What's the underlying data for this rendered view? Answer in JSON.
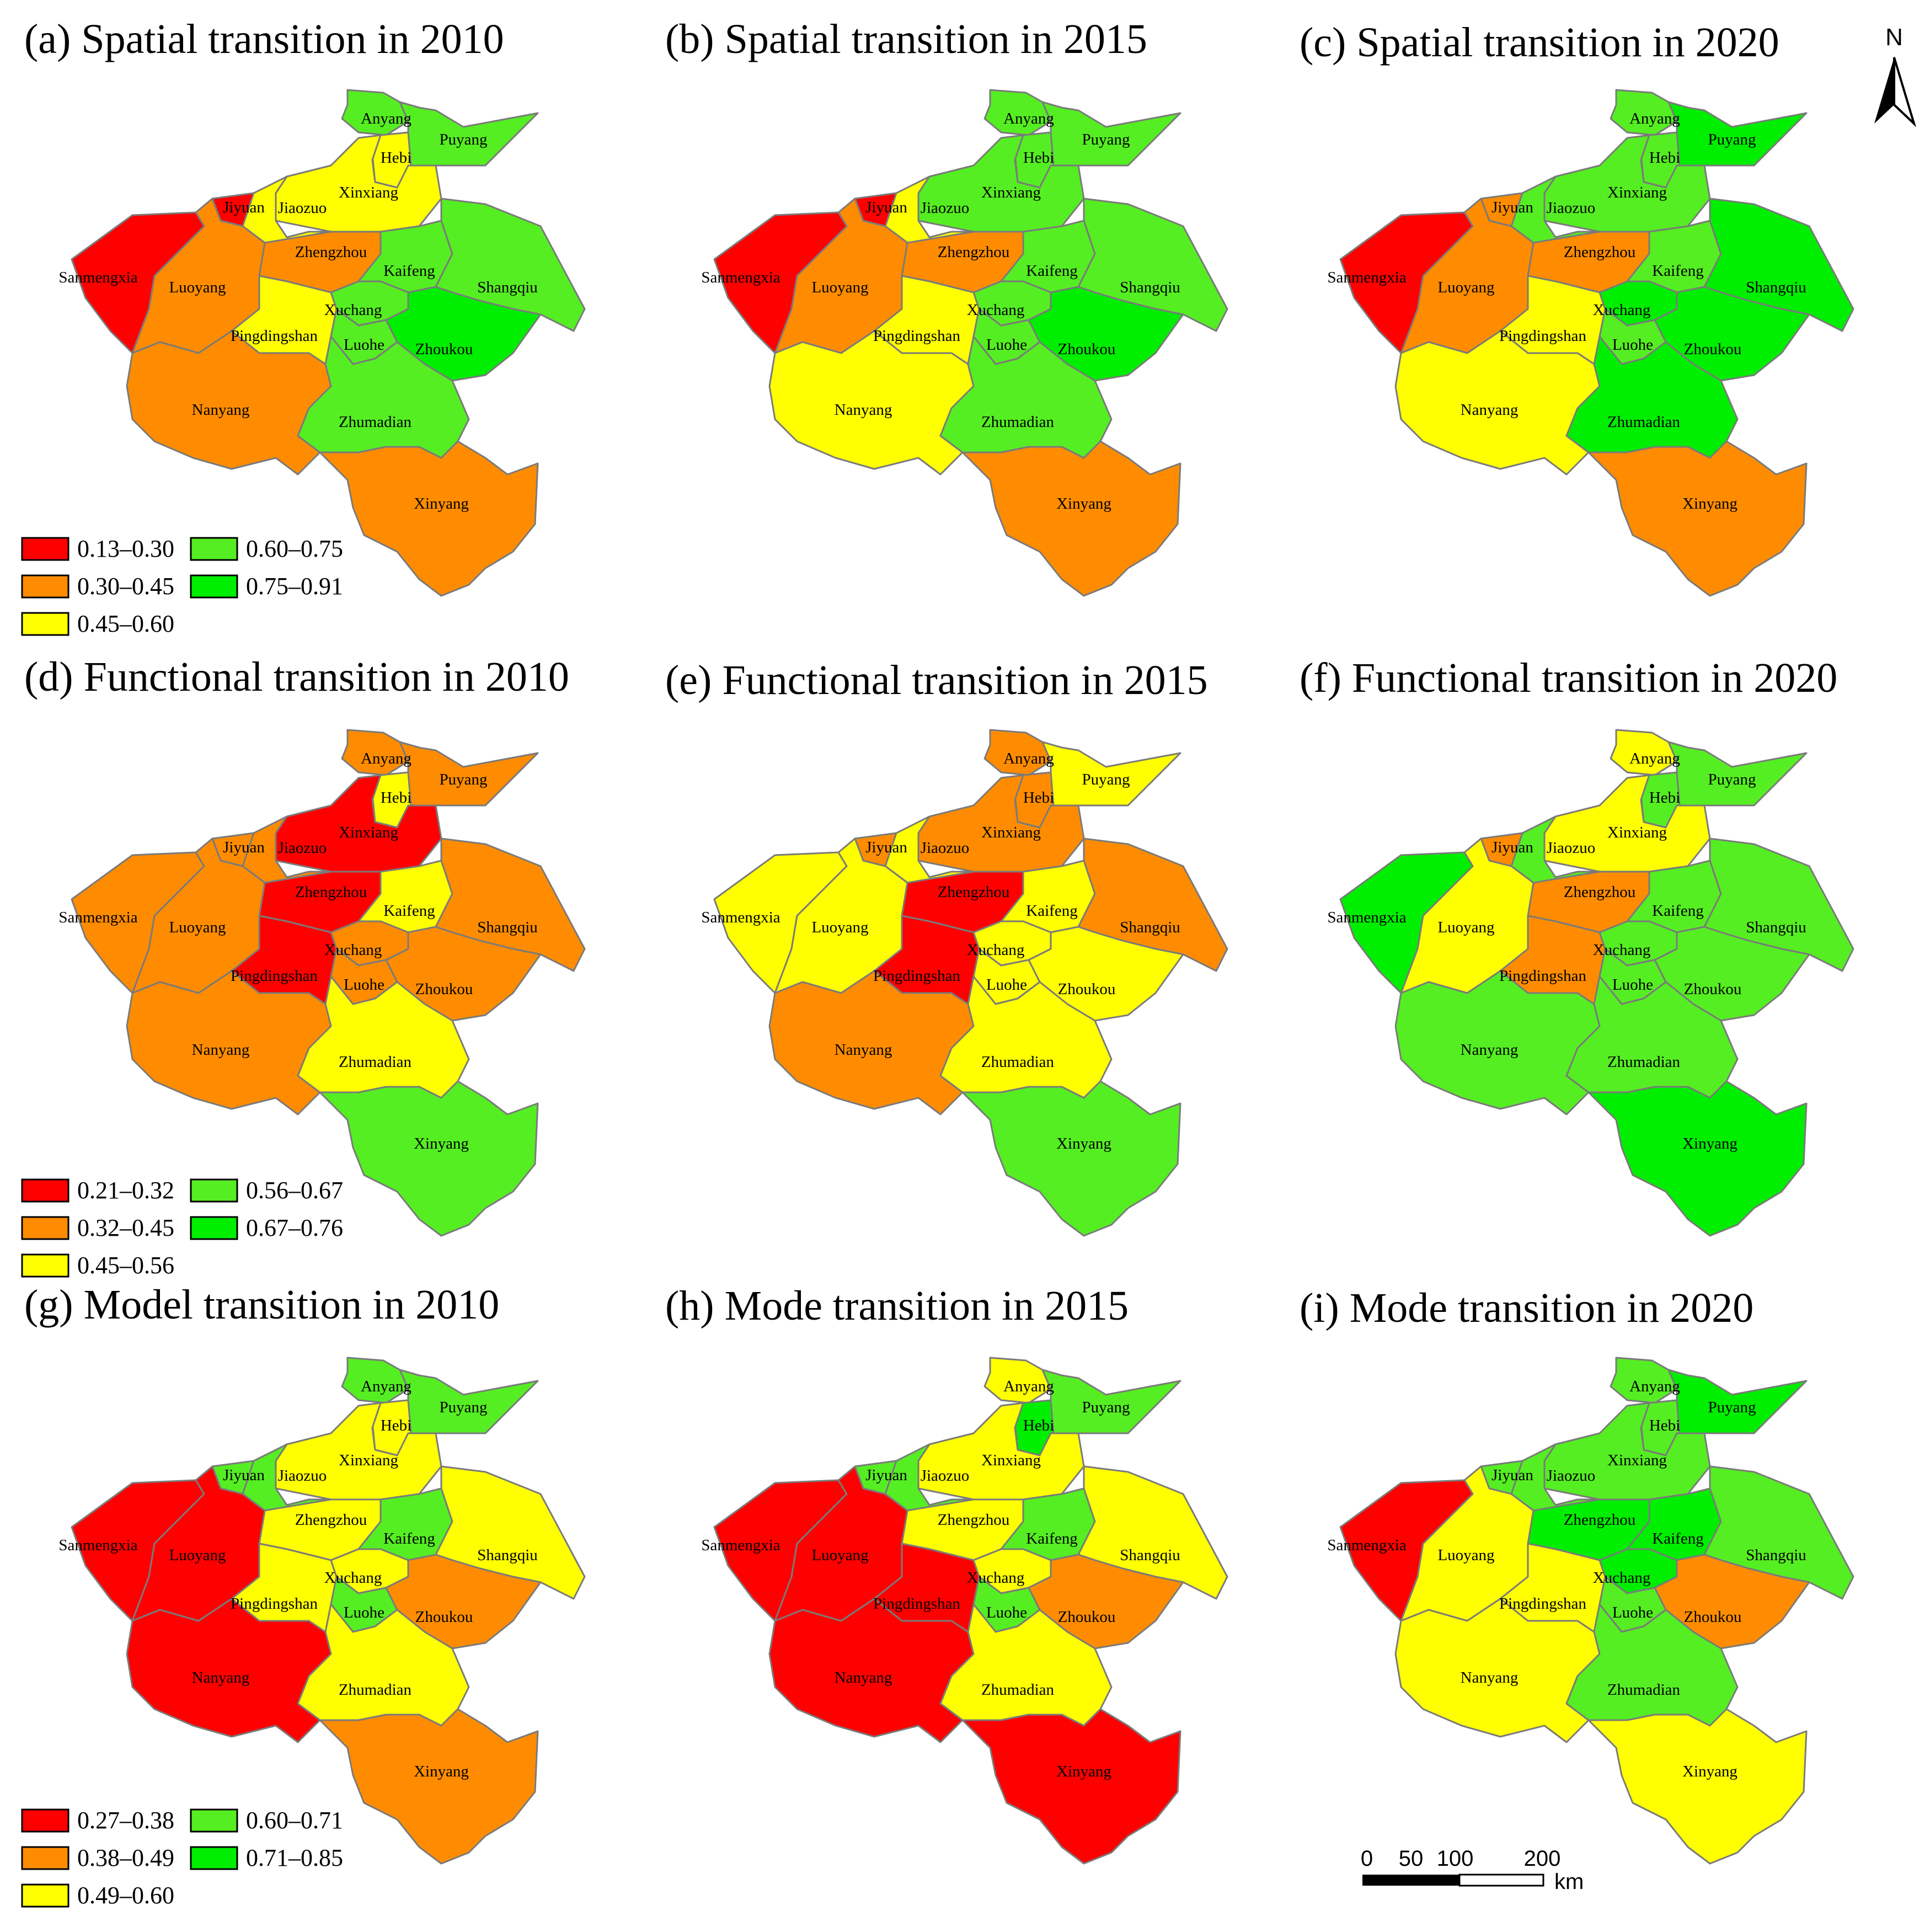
{
  "colors": {
    "c1": "#ff0000",
    "c2": "#ff8c00",
    "c3": "#ffff00",
    "c4": "#55ee22",
    "c5": "#00ee00",
    "border": "#7a7a7a"
  },
  "legends": [
    {
      "ranges": [
        "0.13–0.30",
        "0.30–0.45",
        "0.45–0.60",
        "0.60–0.75",
        "0.75–0.91"
      ]
    },
    {
      "ranges": [
        "0.21–0.32",
        "0.32–0.45",
        "0.45–0.56",
        "0.56–0.67",
        "0.67–0.76"
      ]
    },
    {
      "ranges": [
        "0.27–0.38",
        "0.38–0.49",
        "0.49–0.60",
        "0.60–0.71",
        "0.71–0.85"
      ]
    }
  ],
  "cities": [
    "Anyang",
    "Puyang",
    "Hebi",
    "Xinxiang",
    "Jiyuan",
    "Jiaozuo",
    "Zhengzhou",
    "Kaifeng",
    "Shangqiu",
    "Sanmengxia",
    "Luoyang",
    "Pingdingshan",
    "Xuchang",
    "Luohe",
    "Zhoukou",
    "Nanyang",
    "Zhumadian",
    "Xinyang"
  ],
  "panels": [
    {
      "title": "(a) Spatial transition in 2010",
      "classes": {
        "Anyang": 4,
        "Puyang": 4,
        "Hebi": 3,
        "Xinxiang": 3,
        "Jiyuan": 1,
        "Jiaozuo": 3,
        "Zhengzhou": 2,
        "Kaifeng": 4,
        "Shangqiu": 4,
        "Sanmengxia": 1,
        "Luoyang": 2,
        "Pingdingshan": 3,
        "Xuchang": 4,
        "Luohe": 4,
        "Zhoukou": 5,
        "Nanyang": 2,
        "Zhumadian": 4,
        "Xinyang": 2
      }
    },
    {
      "title": "(b) Spatial transition in 2015",
      "classes": {
        "Anyang": 4,
        "Puyang": 4,
        "Hebi": 4,
        "Xinxiang": 4,
        "Jiyuan": 1,
        "Jiaozuo": 3,
        "Zhengzhou": 2,
        "Kaifeng": 4,
        "Shangqiu": 4,
        "Sanmengxia": 1,
        "Luoyang": 2,
        "Pingdingshan": 3,
        "Xuchang": 4,
        "Luohe": 4,
        "Zhoukou": 5,
        "Nanyang": 3,
        "Zhumadian": 4,
        "Xinyang": 2
      }
    },
    {
      "title": "(c) Spatial transition in 2020",
      "classes": {
        "Anyang": 4,
        "Puyang": 5,
        "Hebi": 4,
        "Xinxiang": 4,
        "Jiyuan": 2,
        "Jiaozuo": 4,
        "Zhengzhou": 2,
        "Kaifeng": 4,
        "Shangqiu": 5,
        "Sanmengxia": 1,
        "Luoyang": 2,
        "Pingdingshan": 3,
        "Xuchang": 5,
        "Luohe": 4,
        "Zhoukou": 5,
        "Nanyang": 3,
        "Zhumadian": 5,
        "Xinyang": 2
      }
    },
    {
      "title": "(d) Functional transition in 2010",
      "classes": {
        "Anyang": 2,
        "Puyang": 2,
        "Hebi": 3,
        "Xinxiang": 1,
        "Jiyuan": 2,
        "Jiaozuo": 2,
        "Zhengzhou": 1,
        "Kaifeng": 3,
        "Shangqiu": 2,
        "Sanmengxia": 2,
        "Luoyang": 2,
        "Pingdingshan": 1,
        "Xuchang": 2,
        "Luohe": 2,
        "Zhoukou": 2,
        "Nanyang": 2,
        "Zhumadian": 3,
        "Xinyang": 4
      }
    },
    {
      "title": "(e) Functional transition in 2015",
      "classes": {
        "Anyang": 2,
        "Puyang": 3,
        "Hebi": 2,
        "Xinxiang": 2,
        "Jiyuan": 2,
        "Jiaozuo": 3,
        "Zhengzhou": 1,
        "Kaifeng": 3,
        "Shangqiu": 2,
        "Sanmengxia": 3,
        "Luoyang": 3,
        "Pingdingshan": 1,
        "Xuchang": 3,
        "Luohe": 3,
        "Zhoukou": 3,
        "Nanyang": 2,
        "Zhumadian": 3,
        "Xinyang": 4
      }
    },
    {
      "title": "(f) Functional transition in 2020",
      "classes": {
        "Anyang": 3,
        "Puyang": 4,
        "Hebi": 4,
        "Xinxiang": 3,
        "Jiyuan": 2,
        "Jiaozuo": 4,
        "Zhengzhou": 2,
        "Kaifeng": 4,
        "Shangqiu": 4,
        "Sanmengxia": 5,
        "Luoyang": 3,
        "Pingdingshan": 2,
        "Xuchang": 4,
        "Luohe": 4,
        "Zhoukou": 4,
        "Nanyang": 4,
        "Zhumadian": 4,
        "Xinyang": 5
      }
    },
    {
      "title": "(g) Model transition in 2010",
      "classes": {
        "Anyang": 4,
        "Puyang": 4,
        "Hebi": 3,
        "Xinxiang": 3,
        "Jiyuan": 4,
        "Jiaozuo": 4,
        "Zhengzhou": 3,
        "Kaifeng": 4,
        "Shangqiu": 3,
        "Sanmengxia": 1,
        "Luoyang": 1,
        "Pingdingshan": 3,
        "Xuchang": 3,
        "Luohe": 4,
        "Zhoukou": 2,
        "Nanyang": 1,
        "Zhumadian": 3,
        "Xinyang": 2
      }
    },
    {
      "title": "(h) Mode transition in 2015",
      "classes": {
        "Anyang": 3,
        "Puyang": 4,
        "Hebi": 5,
        "Xinxiang": 3,
        "Jiyuan": 4,
        "Jiaozuo": 4,
        "Zhengzhou": 3,
        "Kaifeng": 4,
        "Shangqiu": 3,
        "Sanmengxia": 1,
        "Luoyang": 1,
        "Pingdingshan": 1,
        "Xuchang": 3,
        "Luohe": 4,
        "Zhoukou": 2,
        "Nanyang": 1,
        "Zhumadian": 3,
        "Xinyang": 1
      }
    },
    {
      "title": "(i) Mode transition in 2020",
      "classes": {
        "Anyang": 4,
        "Puyang": 5,
        "Hebi": 4,
        "Xinxiang": 4,
        "Jiyuan": 4,
        "Jiaozuo": 4,
        "Zhengzhou": 5,
        "Kaifeng": 5,
        "Shangqiu": 4,
        "Sanmengxia": 1,
        "Luoyang": 3,
        "Pingdingshan": 3,
        "Xuchang": 5,
        "Luohe": 4,
        "Zhoukou": 2,
        "Nanyang": 3,
        "Zhumadian": 4,
        "Xinyang": 3
      }
    }
  ],
  "north_label": "N",
  "scale_bar": {
    "ticks": [
      "0",
      "50",
      "100",
      "200"
    ],
    "unit": "km"
  }
}
